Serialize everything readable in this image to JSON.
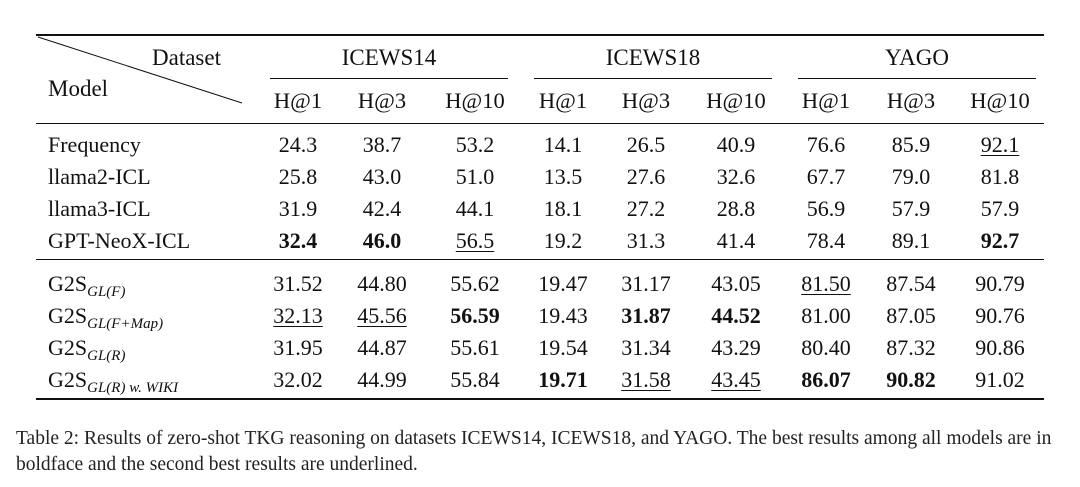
{
  "header": {
    "dataset_label": "Dataset",
    "model_label": "Model",
    "datasets": [
      "ICEWS14",
      "ICEWS18",
      "YAGO"
    ],
    "metrics": [
      "H@1",
      "H@3",
      "H@10",
      "H@1",
      "H@3",
      "H@10",
      "H@1",
      "H@3",
      "H@10"
    ]
  },
  "groups": [
    {
      "rows": [
        {
          "model": "Frequency",
          "values": [
            "24.3",
            "38.7",
            "53.2",
            "14.1",
            "26.5",
            "40.9",
            "76.6",
            "85.9",
            "92.1"
          ],
          "bold": [],
          "underline": [
            8
          ]
        },
        {
          "model": "llama2-ICL",
          "values": [
            "25.8",
            "43.0",
            "51.0",
            "13.5",
            "27.6",
            "32.6",
            "67.7",
            "79.0",
            "81.8"
          ],
          "bold": [],
          "underline": []
        },
        {
          "model": "llama3-ICL",
          "values": [
            "31.9",
            "42.4",
            "44.1",
            "18.1",
            "27.2",
            "28.8",
            "56.9",
            "57.9",
            "57.9"
          ],
          "bold": [],
          "underline": []
        },
        {
          "model": "GPT-NeoX-ICL",
          "values": [
            "32.4",
            "46.0",
            "56.5",
            "19.2",
            "31.3",
            "41.4",
            "78.4",
            "89.1",
            "92.7"
          ],
          "bold": [
            0,
            1,
            8
          ],
          "underline": [
            2
          ]
        }
      ]
    },
    {
      "rows": [
        {
          "model": "G2S",
          "sub": "GL(F)",
          "values": [
            "31.52",
            "44.80",
            "55.62",
            "19.47",
            "31.17",
            "43.05",
            "81.50",
            "87.54",
            "90.79"
          ],
          "bold": [],
          "underline": [
            6
          ]
        },
        {
          "model": "G2S",
          "sub": "GL(F+Map)",
          "values": [
            "32.13",
            "45.56",
            "56.59",
            "19.43",
            "31.87",
            "44.52",
            "81.00",
            "87.05",
            "90.76"
          ],
          "bold": [
            2,
            4,
            5
          ],
          "underline": [
            0,
            1
          ]
        },
        {
          "model": "G2S",
          "sub": "GL(R)",
          "values": [
            "31.95",
            "44.87",
            "55.61",
            "19.54",
            "31.34",
            "43.29",
            "80.40",
            "87.32",
            "90.86"
          ],
          "bold": [],
          "underline": []
        },
        {
          "model": "G2S",
          "sub": "GL(R) w. WIKI",
          "values": [
            "32.02",
            "44.99",
            "55.84",
            "19.71",
            "31.58",
            "43.45",
            "86.07",
            "90.82",
            "91.02"
          ],
          "bold": [
            3,
            6,
            7
          ],
          "underline": [
            4,
            5
          ]
        }
      ]
    }
  ],
  "caption": "Table 2: Results of zero-shot TKG reasoning on datasets ICEWS14, ICEWS18, and YAGO. The best results among all models are in boldface and the second best results are underlined."
}
